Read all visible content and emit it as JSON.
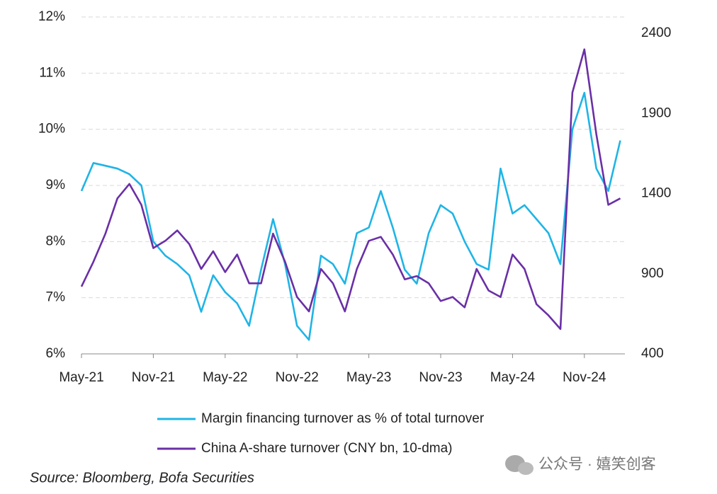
{
  "chart_data": {
    "type": "line",
    "x": [
      "2021-05",
      "2021-06",
      "2021-07",
      "2021-08",
      "2021-09",
      "2021-10",
      "2021-11",
      "2021-12",
      "2022-01",
      "2022-02",
      "2022-03",
      "2022-04",
      "2022-05",
      "2022-06",
      "2022-07",
      "2022-08",
      "2022-09",
      "2022-10",
      "2022-11",
      "2022-12",
      "2023-01",
      "2023-02",
      "2023-03",
      "2023-04",
      "2023-05",
      "2023-06",
      "2023-07",
      "2023-08",
      "2023-09",
      "2023-10",
      "2023-11",
      "2023-12",
      "2024-01",
      "2024-02",
      "2024-03",
      "2024-04",
      "2024-05",
      "2024-06",
      "2024-07",
      "2024-08",
      "2024-09",
      "2024-10",
      "2024-11",
      "2024-12",
      "2025-01",
      "2025-02"
    ],
    "xticks": [
      {
        "value": "2021-05",
        "label": "May-21"
      },
      {
        "value": "2021-11",
        "label": "Nov-21"
      },
      {
        "value": "2022-05",
        "label": "May-22"
      },
      {
        "value": "2022-11",
        "label": "Nov-22"
      },
      {
        "value": "2023-05",
        "label": "May-23"
      },
      {
        "value": "2023-11",
        "label": "Nov-23"
      },
      {
        "value": "2024-05",
        "label": "May-24"
      },
      {
        "value": "2024-11",
        "label": "Nov-24"
      }
    ],
    "ylim": [
      6,
      12
    ],
    "yticks": [
      {
        "value": 6,
        "label": "6%"
      },
      {
        "value": 7,
        "label": "7%"
      },
      {
        "value": 8,
        "label": "8%"
      },
      {
        "value": 9,
        "label": "9%"
      },
      {
        "value": 10,
        "label": "10%"
      },
      {
        "value": 11,
        "label": "11%"
      },
      {
        "value": 12,
        "label": "12%"
      }
    ],
    "y2lim": [
      400,
      2400
    ],
    "y2ticks": [
      400,
      900,
      1400,
      1900,
      2400
    ],
    "grid": true,
    "series": [
      {
        "name": "Margin financing turnover as % of total turnover",
        "color": "#1fb4e6",
        "values": [
          8.9,
          9.4,
          9.35,
          9.3,
          9.2,
          9.0,
          8.0,
          7.75,
          7.6,
          7.4,
          6.75,
          7.4,
          7.1,
          6.9,
          6.5,
          7.5,
          8.4,
          7.6,
          6.5,
          6.25,
          7.75,
          7.6,
          7.25,
          8.15,
          8.25,
          8.9,
          8.25,
          7.5,
          7.25,
          8.15,
          8.65,
          8.5,
          8.0,
          7.6,
          7.5,
          9.3,
          8.5,
          8.65,
          8.4,
          8.15,
          7.6,
          10.0,
          10.65,
          9.3,
          8.9,
          9.8
        ]
      },
      {
        "name": "China A-share turnover (CNY bn, 10-dma)",
        "color": "#6a2fa6",
        "axis": "y2",
        "values": [
          820,
          975,
          1150,
          1370,
          1460,
          1330,
          1060,
          1105,
          1170,
          1085,
          930,
          1040,
          910,
          1020,
          840,
          840,
          1150,
          975,
          755,
          665,
          930,
          840,
          665,
          930,
          1105,
          1130,
          1020,
          865,
          885,
          840,
          730,
          755,
          690,
          930,
          795,
          755,
          1020,
          930,
          710,
          640,
          555,
          2030,
          2300,
          1770,
          1330,
          1370
        ]
      }
    ],
    "source": "Source: Bloomberg, Bofa Securities",
    "watermark": "公众号 · 嬉笑创客"
  }
}
